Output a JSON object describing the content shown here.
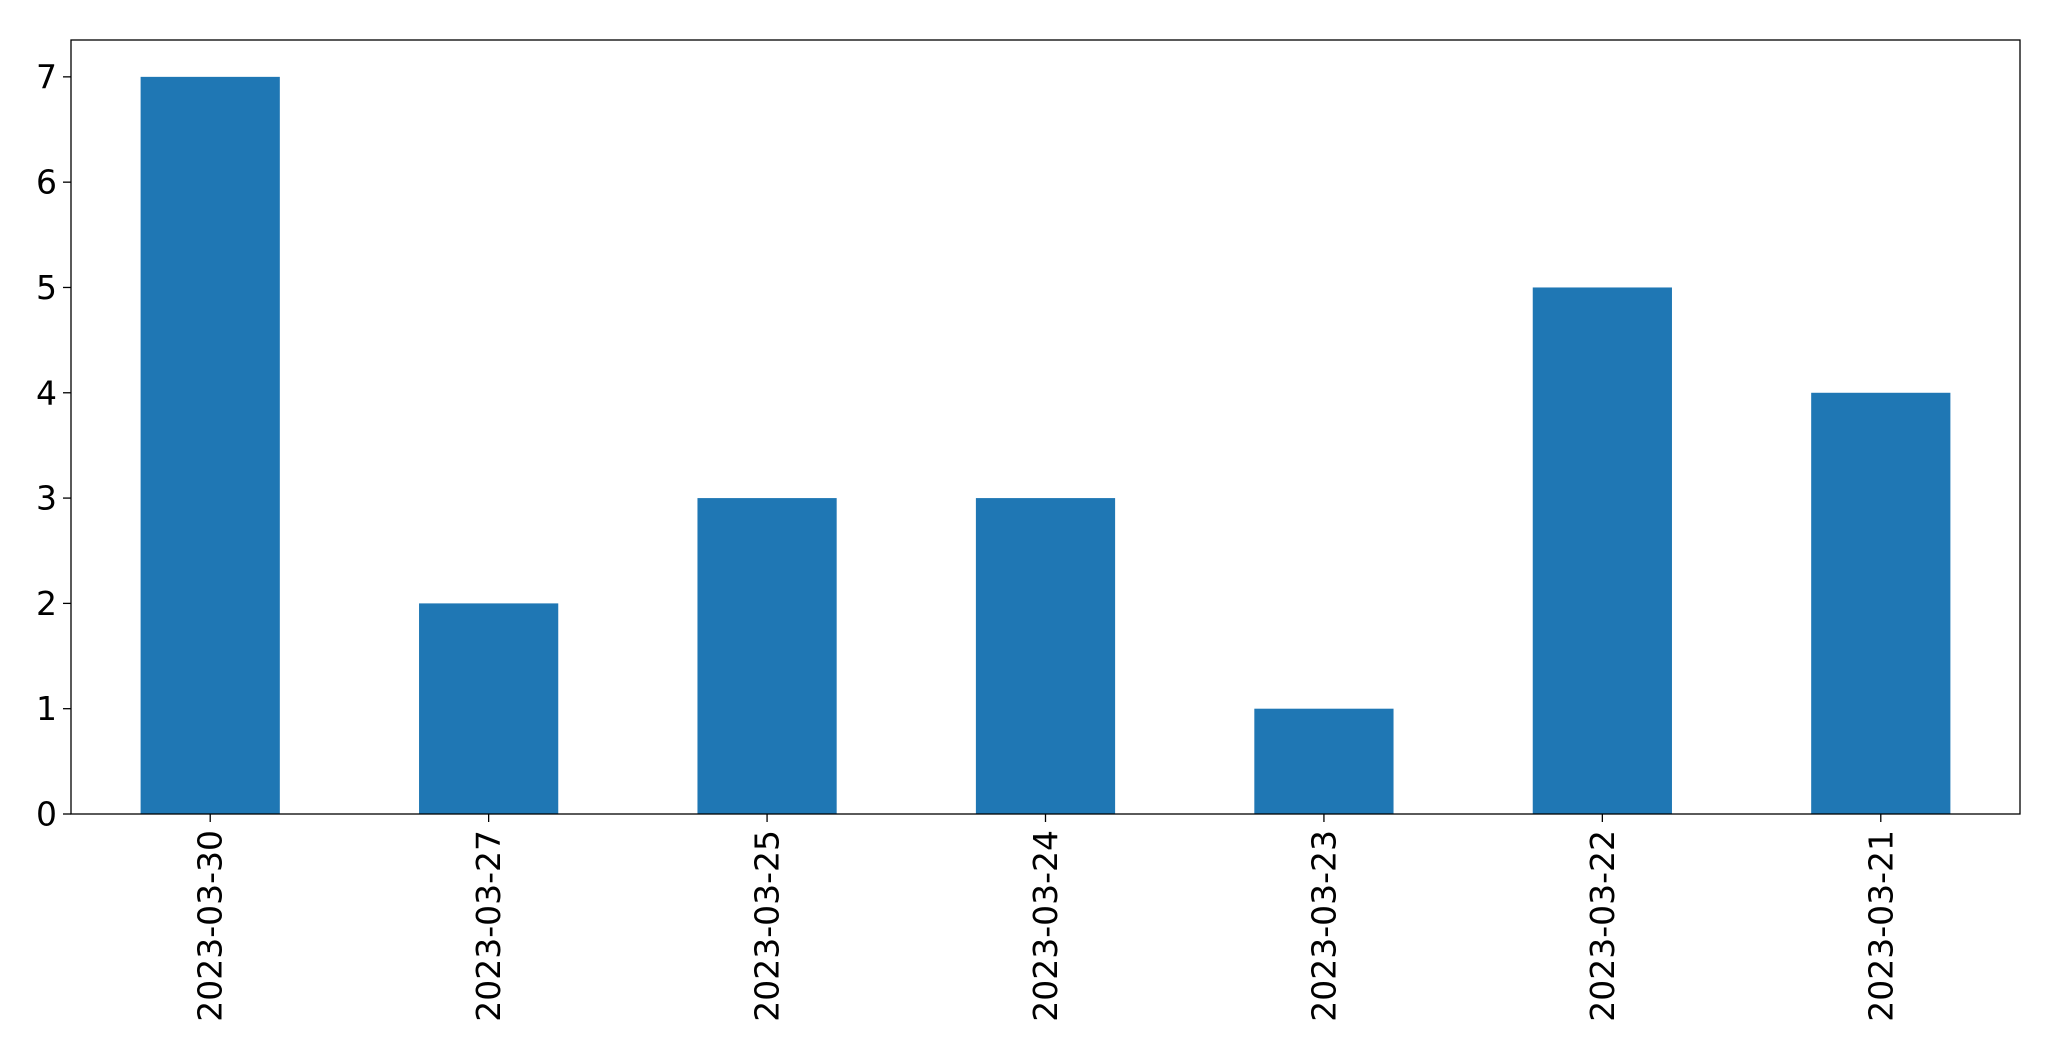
{
  "chart_data": {
    "type": "bar",
    "categories": [
      "2023-03-30",
      "2023-03-27",
      "2023-03-25",
      "2023-03-24",
      "2023-03-23",
      "2023-03-22",
      "2023-03-21"
    ],
    "values": [
      7,
      2,
      3,
      3,
      1,
      5,
      4
    ],
    "ylim": [
      0,
      7.35
    ],
    "yticks": [
      0,
      1,
      2,
      3,
      4,
      5,
      6,
      7
    ],
    "grid": false,
    "bar_color": "#1f77b4",
    "x_tick_rotation": "vertical"
  }
}
